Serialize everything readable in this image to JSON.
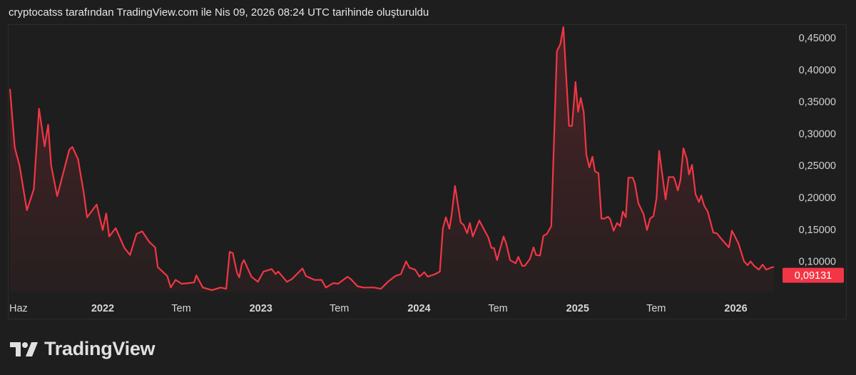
{
  "header": {
    "title": "cryptocatss tarafından TradingView.com ile Nis 09, 2026 08:24 UTC tarihinde oluşturuldu"
  },
  "branding": {
    "logo_text": "TradingView"
  },
  "chart_data": {
    "type": "area",
    "line_color": "#f23645",
    "ylim": [
      0.045,
      0.47
    ],
    "y_ticks": [
      "0,45000",
      "0,40000",
      "0,35000",
      "0,30000",
      "0,25000",
      "0,20000",
      "0,15000",
      "0,10000"
    ],
    "y_tick_values": [
      0.45,
      0.4,
      0.35,
      0.3,
      0.25,
      0.2,
      0.15,
      0.1
    ],
    "x_ticks": [
      {
        "label": "Haz",
        "date": "2021-06-01",
        "bold": false
      },
      {
        "label": "2022",
        "date": "2022-01-01",
        "bold": true
      },
      {
        "label": "Tem",
        "date": "2022-07-01",
        "bold": false
      },
      {
        "label": "2023",
        "date": "2023-01-01",
        "bold": true
      },
      {
        "label": "Tem",
        "date": "2023-07-01",
        "bold": false
      },
      {
        "label": "2024",
        "date": "2024-01-01",
        "bold": true
      },
      {
        "label": "Tem",
        "date": "2024-07-01",
        "bold": false
      },
      {
        "label": "2025",
        "date": "2025-01-01",
        "bold": true
      },
      {
        "label": "Tem",
        "date": "2025-07-01",
        "bold": false
      },
      {
        "label": "2026",
        "date": "2026-01-01",
        "bold": true
      }
    ],
    "last_price": {
      "label": "0,09131",
      "value": 0.09131
    },
    "grid": false,
    "points": [
      [
        "2021-06-01",
        0.37
      ],
      [
        "2021-06-12",
        0.278
      ],
      [
        "2021-06-23",
        0.25
      ],
      [
        "2021-07-10",
        0.18
      ],
      [
        "2021-07-26",
        0.213
      ],
      [
        "2021-08-07",
        0.339
      ],
      [
        "2021-08-20",
        0.28
      ],
      [
        "2021-08-28",
        0.314
      ],
      [
        "2021-09-04",
        0.25
      ],
      [
        "2021-09-18",
        0.202
      ],
      [
        "2021-10-16",
        0.275
      ],
      [
        "2021-10-23",
        0.279
      ],
      [
        "2021-11-05",
        0.26
      ],
      [
        "2021-11-18",
        0.208
      ],
      [
        "2021-11-26",
        0.169
      ],
      [
        "2021-12-18",
        0.189
      ],
      [
        "2022-01-01",
        0.149
      ],
      [
        "2022-01-09",
        0.175
      ],
      [
        "2022-01-16",
        0.139
      ],
      [
        "2022-01-31",
        0.152
      ],
      [
        "2022-02-20",
        0.121
      ],
      [
        "2022-03-05",
        0.11
      ],
      [
        "2022-03-20",
        0.143
      ],
      [
        "2022-04-02",
        0.147
      ],
      [
        "2022-04-19",
        0.13
      ],
      [
        "2022-05-02",
        0.122
      ],
      [
        "2022-05-08",
        0.091
      ],
      [
        "2022-05-30",
        0.077
      ],
      [
        "2022-06-07",
        0.059
      ],
      [
        "2022-06-18",
        0.071
      ],
      [
        "2022-07-02",
        0.065
      ],
      [
        "2022-07-18",
        0.066
      ],
      [
        "2022-07-31",
        0.067
      ],
      [
        "2022-08-05",
        0.078
      ],
      [
        "2022-08-20",
        0.059
      ],
      [
        "2022-09-10",
        0.055
      ],
      [
        "2022-09-30",
        0.059
      ],
      [
        "2022-10-13",
        0.057
      ],
      [
        "2022-10-21",
        0.115
      ],
      [
        "2022-10-28",
        0.113
      ],
      [
        "2022-11-07",
        0.082
      ],
      [
        "2022-11-12",
        0.075
      ],
      [
        "2022-11-18",
        0.096
      ],
      [
        "2022-11-23",
        0.102
      ],
      [
        "2022-12-10",
        0.076
      ],
      [
        "2022-12-25",
        0.068
      ],
      [
        "2023-01-07",
        0.084
      ],
      [
        "2023-01-26",
        0.088
      ],
      [
        "2023-02-04",
        0.08
      ],
      [
        "2023-02-10",
        0.084
      ],
      [
        "2023-03-02",
        0.068
      ],
      [
        "2023-03-13",
        0.072
      ],
      [
        "2023-04-07",
        0.089
      ],
      [
        "2023-04-15",
        0.077
      ],
      [
        "2023-05-05",
        0.071
      ],
      [
        "2023-05-21",
        0.071
      ],
      [
        "2023-05-31",
        0.059
      ],
      [
        "2023-06-17",
        0.066
      ],
      [
        "2023-06-28",
        0.065
      ],
      [
        "2023-07-20",
        0.076
      ],
      [
        "2023-07-28",
        0.072
      ],
      [
        "2023-08-12",
        0.061
      ],
      [
        "2023-08-25",
        0.059
      ],
      [
        "2023-09-19",
        0.059
      ],
      [
        "2023-10-05",
        0.057
      ],
      [
        "2023-10-21",
        0.068
      ],
      [
        "2023-11-07",
        0.077
      ],
      [
        "2023-11-20",
        0.08
      ],
      [
        "2023-12-02",
        0.1
      ],
      [
        "2023-12-10",
        0.09
      ],
      [
        "2023-12-23",
        0.087
      ],
      [
        "2024-01-02",
        0.076
      ],
      [
        "2024-01-13",
        0.083
      ],
      [
        "2024-01-21",
        0.076
      ],
      [
        "2024-02-07",
        0.08
      ],
      [
        "2024-02-18",
        0.084
      ],
      [
        "2024-02-25",
        0.152
      ],
      [
        "2024-03-03",
        0.169
      ],
      [
        "2024-03-11",
        0.151
      ],
      [
        "2024-03-16",
        0.172
      ],
      [
        "2024-03-24",
        0.218
      ],
      [
        "2024-04-06",
        0.161
      ],
      [
        "2024-04-13",
        0.157
      ],
      [
        "2024-04-21",
        0.144
      ],
      [
        "2024-04-27",
        0.16
      ],
      [
        "2024-05-04",
        0.139
      ],
      [
        "2024-05-19",
        0.164
      ],
      [
        "2024-06-09",
        0.137
      ],
      [
        "2024-06-16",
        0.121
      ],
      [
        "2024-06-22",
        0.121
      ],
      [
        "2024-06-29",
        0.102
      ],
      [
        "2024-07-14",
        0.139
      ],
      [
        "2024-07-20",
        0.128
      ],
      [
        "2024-07-29",
        0.102
      ],
      [
        "2024-08-11",
        0.097
      ],
      [
        "2024-08-17",
        0.107
      ],
      [
        "2024-08-26",
        0.093
      ],
      [
        "2024-09-01",
        0.093
      ],
      [
        "2024-09-13",
        0.104
      ],
      [
        "2024-09-21",
        0.122
      ],
      [
        "2024-09-27",
        0.11
      ],
      [
        "2024-10-06",
        0.109
      ],
      [
        "2024-10-14",
        0.14
      ],
      [
        "2024-10-22",
        0.143
      ],
      [
        "2024-10-27",
        0.149
      ],
      [
        "2024-11-01",
        0.155
      ],
      [
        "2024-11-14",
        0.429
      ],
      [
        "2024-11-22",
        0.44
      ],
      [
        "2024-11-29",
        0.467
      ],
      [
        "2024-12-12",
        0.312
      ],
      [
        "2024-12-19",
        0.312
      ],
      [
        "2024-12-27",
        0.381
      ],
      [
        "2025-01-02",
        0.334
      ],
      [
        "2025-01-08",
        0.356
      ],
      [
        "2025-01-15",
        0.334
      ],
      [
        "2025-01-21",
        0.267
      ],
      [
        "2025-01-28",
        0.247
      ],
      [
        "2025-02-04",
        0.264
      ],
      [
        "2025-02-10",
        0.241
      ],
      [
        "2025-02-18",
        0.238
      ],
      [
        "2025-02-25",
        0.167
      ],
      [
        "2025-03-04",
        0.167
      ],
      [
        "2025-03-12",
        0.17
      ],
      [
        "2025-03-17",
        0.166
      ],
      [
        "2025-03-25",
        0.148
      ],
      [
        "2025-04-02",
        0.16
      ],
      [
        "2025-04-09",
        0.155
      ],
      [
        "2025-04-15",
        0.178
      ],
      [
        "2025-04-22",
        0.169
      ],
      [
        "2025-04-28",
        0.231
      ],
      [
        "2025-05-08",
        0.231
      ],
      [
        "2025-05-13",
        0.222
      ],
      [
        "2025-05-21",
        0.191
      ],
      [
        "2025-06-02",
        0.174
      ],
      [
        "2025-06-10",
        0.149
      ],
      [
        "2025-06-17",
        0.167
      ],
      [
        "2025-06-25",
        0.171
      ],
      [
        "2025-07-02",
        0.199
      ],
      [
        "2025-07-08",
        0.273
      ],
      [
        "2025-07-23",
        0.197
      ],
      [
        "2025-07-30",
        0.232
      ],
      [
        "2025-08-10",
        0.232
      ],
      [
        "2025-08-13",
        0.228
      ],
      [
        "2025-08-20",
        0.211
      ],
      [
        "2025-08-26",
        0.227
      ],
      [
        "2025-09-02",
        0.277
      ],
      [
        "2025-09-10",
        0.26
      ],
      [
        "2025-09-15",
        0.236
      ],
      [
        "2025-09-22",
        0.251
      ],
      [
        "2025-09-30",
        0.205
      ],
      [
        "2025-10-08",
        0.193
      ],
      [
        "2025-10-13",
        0.203
      ],
      [
        "2025-10-20",
        0.187
      ],
      [
        "2025-10-28",
        0.178
      ],
      [
        "2025-11-10",
        0.145
      ],
      [
        "2025-11-18",
        0.144
      ],
      [
        "2025-11-30",
        0.134
      ],
      [
        "2025-12-16",
        0.122
      ],
      [
        "2025-12-23",
        0.148
      ],
      [
        "2026-01-01",
        0.136
      ],
      [
        "2026-01-07",
        0.128
      ],
      [
        "2026-01-20",
        0.1
      ],
      [
        "2026-01-28",
        0.094
      ],
      [
        "2026-02-04",
        0.1
      ],
      [
        "2026-02-12",
        0.093
      ],
      [
        "2026-02-23",
        0.087
      ],
      [
        "2026-03-04",
        0.095
      ],
      [
        "2026-03-12",
        0.087
      ],
      [
        "2026-03-22",
        0.09
      ],
      [
        "2026-03-30",
        0.09131
      ]
    ]
  }
}
